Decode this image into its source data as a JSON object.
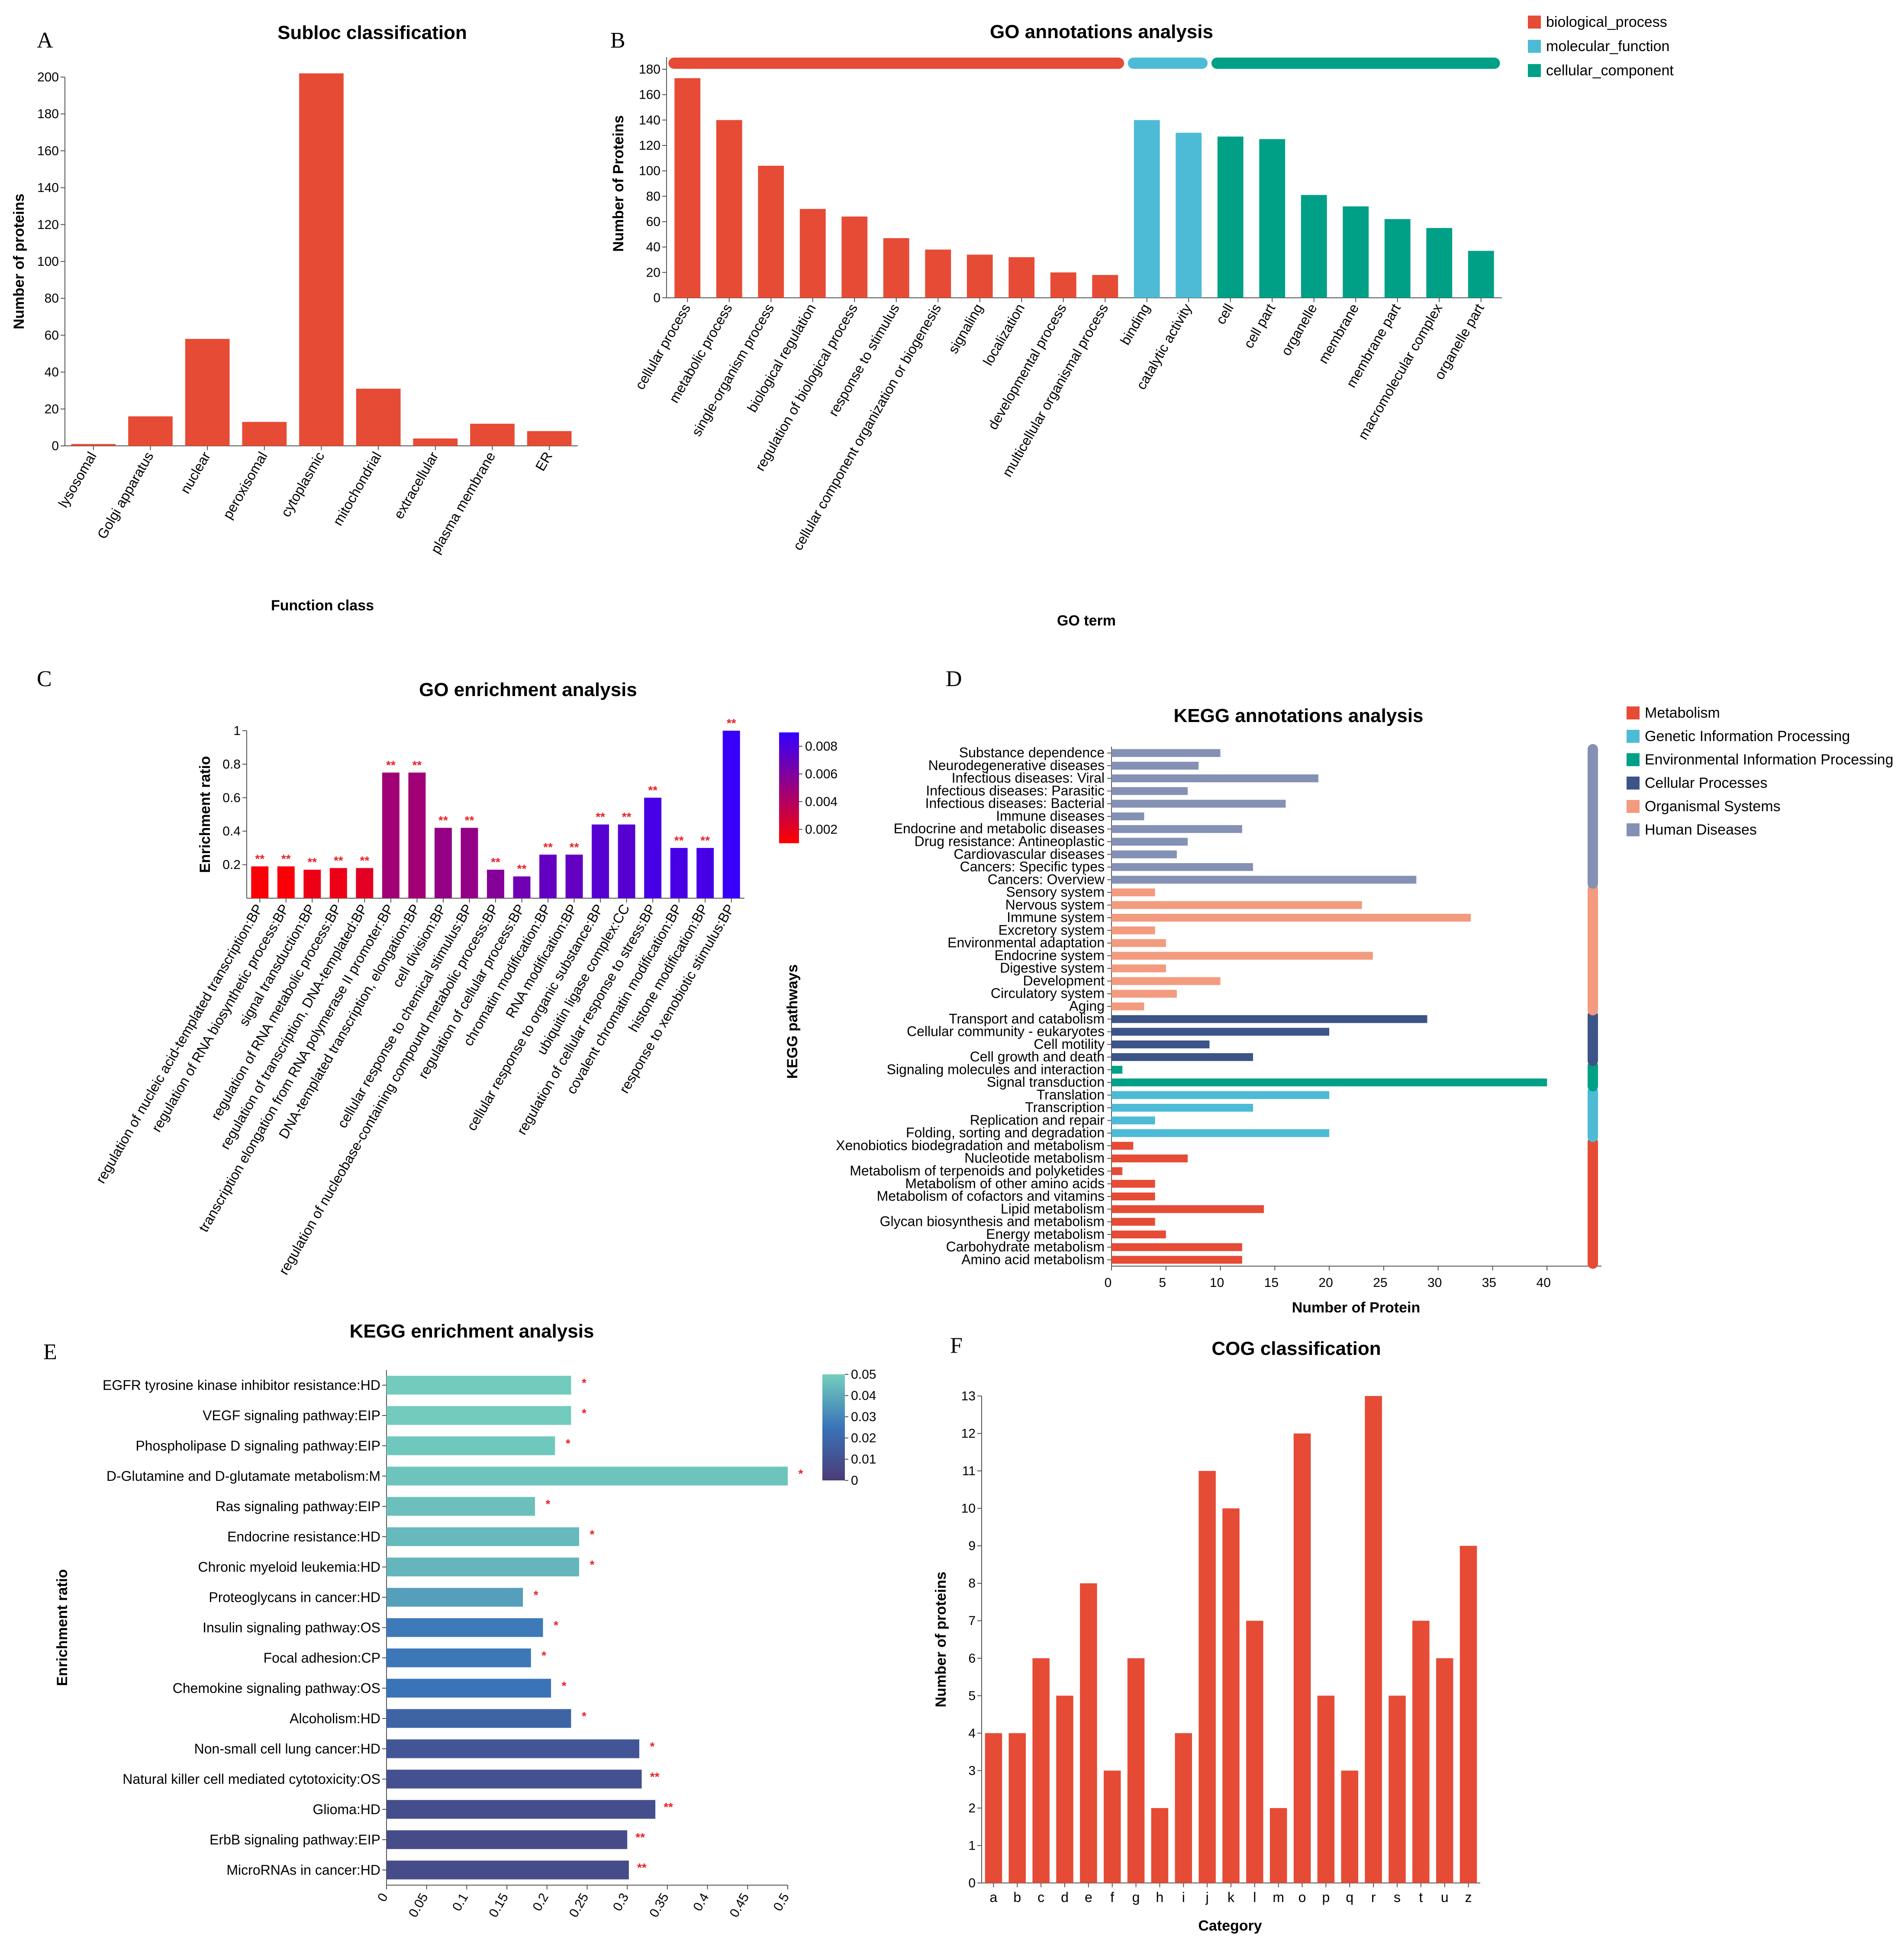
{
  "chart_data": [
    {
      "panel": "A",
      "type": "bar",
      "title": "Subloc classification",
      "xlabel": "Function class",
      "ylabel": "Number of proteins",
      "ylim": [
        0,
        200
      ],
      "yticks": [
        0,
        20,
        40,
        60,
        80,
        100,
        120,
        140,
        160,
        180,
        200
      ],
      "categories": [
        "lysosomal",
        "Golgi apparatus",
        "nuclear",
        "peroxisomal",
        "cytoplasmic",
        "mitochondrial",
        "extracellular",
        "plasma membrane",
        "ER"
      ],
      "values": [
        1,
        16,
        58,
        13,
        202,
        31,
        4,
        12,
        8
      ],
      "color": "#e64b35"
    },
    {
      "panel": "B",
      "type": "bar",
      "title": "GO annotations analysis",
      "xlabel": "GO term",
      "ylabel": "Number of Proteins",
      "ylim": [
        0,
        180
      ],
      "yticks": [
        0,
        20,
        40,
        60,
        80,
        100,
        120,
        140,
        160,
        180
      ],
      "legend": [
        {
          "name": "biological_process",
          "color": "#e64b35"
        },
        {
          "name": "molecular_function",
          "color": "#4dbbd5"
        },
        {
          "name": "cellular_component",
          "color": "#00a087"
        }
      ],
      "categories": [
        "cellular process",
        "metabolic process",
        "single-organism process",
        "biological regulation",
        "regulation of biological process",
        "response to stimulus",
        "cellular component organization or biogenesis",
        "signaling",
        "localization",
        "developmental process",
        "multicellular organismal process",
        "binding",
        "catalytic activity",
        "cell",
        "cell part",
        "organelle",
        "membrane",
        "membrane part",
        "macromolecular complex",
        "organelle part"
      ],
      "values": [
        173,
        140,
        104,
        70,
        64,
        47,
        38,
        34,
        32,
        20,
        18,
        140,
        130,
        127,
        125,
        81,
        72,
        62,
        55,
        37
      ],
      "groups": [
        0,
        0,
        0,
        0,
        0,
        0,
        0,
        0,
        0,
        0,
        0,
        1,
        1,
        2,
        2,
        2,
        2,
        2,
        2,
        2
      ]
    },
    {
      "panel": "C",
      "type": "bar",
      "title": "GO enrichment analysis",
      "ylabel": "Enrichment ratio",
      "ylim": [
        0,
        1
      ],
      "yticks": [
        0.2,
        0.4,
        0.6,
        0.8,
        1
      ],
      "colorbar": {
        "label": "KEGG pathways",
        "ticks": [
          0.002,
          0.004,
          0.006,
          0.008
        ],
        "range": [
          0.001,
          0.009
        ],
        "low": "#ff0000",
        "high": "#3300ff"
      },
      "categories": [
        "regulation of nucleic acid-templated transcription:BP",
        "regulation of RNA biosynthetic process:BP",
        "signal transduction:BP",
        "regulation of RNA metabolic process:BP",
        "regulation of transcription, DNA-templated:BP",
        "transcription elongation from RNA polymerase II promoter:BP",
        "DNA-templated transcription, elongation:BP",
        "cell division:BP",
        "cellular response to chemical stimulus:BP",
        "regulation of nucleobase-containing compound metabolic process:BP",
        "regulation of cellular process:BP",
        "chromatin modification:BP",
        "RNA modification:BP",
        "cellular response to organic substance:BP",
        "ubiquitin ligase complex:CC",
        "regulation of cellular response to stress:BP",
        "covalent chromatin modification:BP",
        "histone modification:BP",
        "response to xenobiotic stimulus:BP"
      ],
      "values": [
        0.19,
        0.19,
        0.17,
        0.18,
        0.18,
        0.75,
        0.75,
        0.42,
        0.42,
        0.17,
        0.13,
        0.26,
        0.26,
        0.44,
        0.44,
        0.6,
        0.3,
        0.3,
        1.0
      ],
      "pvalues": [
        0.0012,
        0.0012,
        0.0017,
        0.0017,
        0.0021,
        0.0047,
        0.0047,
        0.0052,
        0.0052,
        0.0058,
        0.0066,
        0.0071,
        0.0071,
        0.0076,
        0.0076,
        0.0082,
        0.0082,
        0.0082,
        0.0088
      ],
      "significance": [
        "**",
        "**",
        "**",
        "**",
        "**",
        "**",
        "**",
        "**",
        "**",
        "**",
        "**",
        "**",
        "**",
        "**",
        "**",
        "**",
        "**",
        "**",
        "**"
      ]
    },
    {
      "panel": "D",
      "type": "bar",
      "orientation": "horizontal",
      "title": "KEGG annotations analysis",
      "xlabel": "Number of Protein",
      "ylabel": "KEGG pathways",
      "xlim": [
        0,
        45
      ],
      "xticks": [
        0,
        5,
        10,
        15,
        20,
        25,
        30,
        35,
        40
      ],
      "legend": [
        {
          "name": "Metabolism",
          "color": "#e64b35"
        },
        {
          "name": "Genetic Information Processing",
          "color": "#4dbbd5"
        },
        {
          "name": "Environmental Information Processing",
          "color": "#00a087"
        },
        {
          "name": "Cellular Processes",
          "color": "#3c5488"
        },
        {
          "name": "Organismal Systems",
          "color": "#f39b7f"
        },
        {
          "name": "Human Diseases",
          "color": "#8491b4"
        }
      ],
      "categories": [
        "Substance dependence",
        "Neurodegenerative diseases",
        "Infectious diseases: Viral",
        "Infectious diseases: Parasitic",
        "Infectious diseases: Bacterial",
        "Immune diseases",
        "Endocrine and metabolic diseases",
        "Drug resistance: Antineoplastic",
        "Cardiovascular diseases",
        "Cancers: Specific types",
        "Cancers: Overview",
        "Sensory system",
        "Nervous system",
        "Immune system",
        "Excretory system",
        "Environmental adaptation",
        "Endocrine system",
        "Digestive system",
        "Development",
        "Circulatory system",
        "Aging",
        "Transport and catabolism",
        "Cellular community - eukaryotes",
        "Cell motility",
        "Cell growth and death",
        "Signaling molecules and interaction",
        "Signal transduction",
        "Translation",
        "Transcription",
        "Replication and repair",
        "Folding, sorting and degradation",
        "Xenobiotics biodegradation and metabolism",
        "Nucleotide metabolism",
        "Metabolism of terpenoids and polyketides",
        "Metabolism of other amino acids",
        "Metabolism of cofactors and vitamins",
        "Lipid metabolism",
        "Glycan biosynthesis and metabolism",
        "Energy metabolism",
        "Carbohydrate metabolism",
        "Amino acid metabolism"
      ],
      "values": [
        10,
        8,
        19,
        7,
        16,
        3,
        12,
        7,
        6,
        13,
        28,
        4,
        23,
        33,
        4,
        5,
        24,
        5,
        10,
        6,
        3,
        29,
        20,
        9,
        13,
        1,
        40,
        20,
        13,
        4,
        20,
        2,
        7,
        1,
        4,
        4,
        14,
        4,
        5,
        12,
        12
      ],
      "groups": [
        5,
        5,
        5,
        5,
        5,
        5,
        5,
        5,
        5,
        5,
        5,
        4,
        4,
        4,
        4,
        4,
        4,
        4,
        4,
        4,
        4,
        3,
        3,
        3,
        3,
        2,
        2,
        1,
        1,
        1,
        1,
        0,
        0,
        0,
        0,
        0,
        0,
        0,
        0,
        0,
        0
      ]
    },
    {
      "panel": "E",
      "type": "bar",
      "orientation": "horizontal",
      "title": "KEGG enrichment analysis",
      "ylabel": "Enrichment ratio",
      "xlim": [
        0,
        0.5
      ],
      "xticks": [
        0,
        0.05,
        0.1,
        0.15,
        0.2,
        0.25,
        0.3,
        0.35,
        0.4,
        0.45,
        0.5
      ],
      "colorbar": {
        "ticks": [
          0,
          0.01,
          0.02,
          0.03,
          0.04,
          0.05
        ],
        "range": [
          0,
          0.05
        ],
        "low": "#4a3c78",
        "mid": "#3a73b8",
        "high": "#74cfbd"
      },
      "categories": [
        "EGFR tyrosine kinase inhibitor resistance:HD",
        "VEGF signaling pathway:EIP",
        "Phospholipase D signaling pathway:EIP",
        "D-Glutamine and D-glutamate metabolism:M",
        "Ras signaling pathway:EIP",
        "Endocrine resistance:HD",
        "Chronic myeloid leukemia:HD",
        "Proteoglycans in cancer:HD",
        "Insulin signaling pathway:OS",
        "Focal adhesion:CP",
        "Chemokine signaling pathway:OS",
        "Alcoholism:HD",
        "Non-small cell lung cancer:HD",
        "Natural killer cell mediated cytotoxicity:OS",
        "Glioma:HD",
        "ErbB signaling pathway:EIP",
        "MicroRNAs in cancer:HD"
      ],
      "values": [
        0.23,
        0.23,
        0.21,
        0.5,
        0.185,
        0.24,
        0.24,
        0.17,
        0.195,
        0.18,
        0.205,
        0.23,
        0.315,
        0.318,
        0.335,
        0.3,
        0.302
      ],
      "pvalues": [
        0.049,
        0.049,
        0.048,
        0.047,
        0.046,
        0.044,
        0.043,
        0.037,
        0.027,
        0.026,
        0.025,
        0.018,
        0.012,
        0.009,
        0.008,
        0.007,
        0.007
      ],
      "significance": [
        "*",
        "*",
        "*",
        "*",
        "*",
        "*",
        "*",
        "*",
        "*",
        "*",
        "*",
        "*",
        "*",
        "**",
        "**",
        "**",
        "**"
      ]
    },
    {
      "panel": "F",
      "type": "bar",
      "title": "COG classification",
      "xlabel": "Category",
      "ylabel": "Number of proteins",
      "ylim": [
        0,
        13
      ],
      "yticks": [
        0,
        1,
        2,
        3,
        4,
        5,
        6,
        7,
        8,
        9,
        10,
        11,
        12,
        13
      ],
      "categories": [
        "a",
        "b",
        "c",
        "d",
        "e",
        "f",
        "g",
        "h",
        "i",
        "j",
        "k",
        "l",
        "m",
        "o",
        "p",
        "q",
        "r",
        "s",
        "t",
        "u",
        "z"
      ],
      "values": [
        4,
        4,
        6,
        5,
        8,
        3,
        6,
        2,
        4,
        11,
        10,
        7,
        2,
        12,
        5,
        3,
        13,
        5,
        7,
        6,
        9
      ],
      "color": "#e64b35"
    }
  ]
}
